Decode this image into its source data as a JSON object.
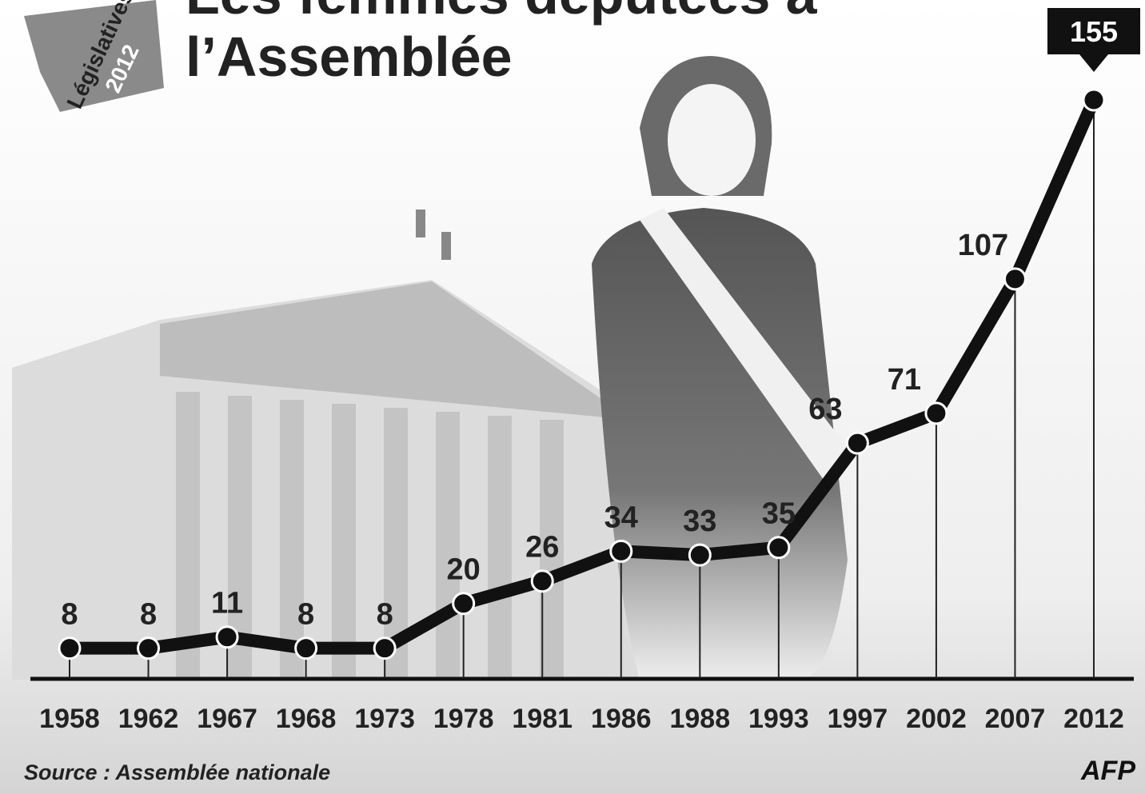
{
  "chart_data": {
    "type": "line",
    "title": "Les femmes députées à l’Assemblée",
    "logo": [
      "Législatives",
      "2012"
    ],
    "source": "Source : Assemblée nationale",
    "credit": "AFP",
    "categories": [
      "1958",
      "1962",
      "1967",
      "1968",
      "1973",
      "1978",
      "1981",
      "1986",
      "1988",
      "1993",
      "1997",
      "2002",
      "2007",
      "2012"
    ],
    "values": [
      8,
      8,
      11,
      8,
      8,
      20,
      26,
      34,
      33,
      35,
      63,
      71,
      107,
      155
    ],
    "color": "#111111"
  }
}
